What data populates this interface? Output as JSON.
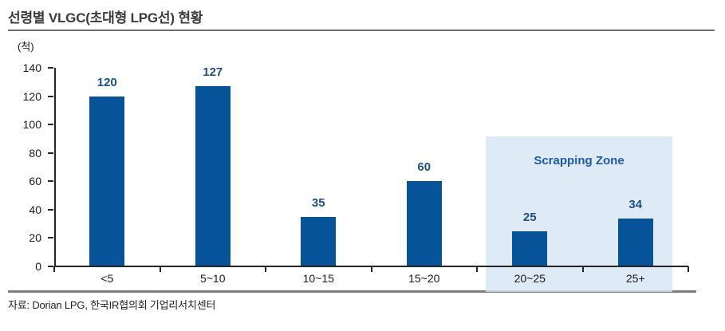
{
  "title": "선령별 VLGC(초대형 LPG선) 현황",
  "unit_label": "(척)",
  "source": "자료: Dorian LPG, 한국IR협의회 기업리서치센터",
  "colors": {
    "bar": "#07539a",
    "value_label": "#1d4f8b",
    "zone_bg": "rgba(213,228,243,0.78)",
    "zone_text": "#1e5ba6",
    "axis": "#262626",
    "title_text": "#3b3b3b",
    "title_rule": "#6f6f6f",
    "bottom_rule": "#7d7d7d"
  },
  "chart_data": {
    "type": "bar",
    "title": "선령별 VLGC(초대형 LPG선) 현황",
    "unit": "척",
    "categories": [
      "<5",
      "5~10",
      "10~15",
      "15~20",
      "20~25",
      "25+"
    ],
    "values": [
      120,
      127,
      35,
      60,
      25,
      34
    ],
    "xlabel": "",
    "ylabel": "(척)",
    "ylim": [
      0,
      140
    ],
    "ytick_step": 20,
    "grid": false,
    "legend": false,
    "annotation": {
      "label": "Scrapping Zone",
      "categories": [
        "20~25",
        "25+"
      ],
      "y_top": 90
    }
  }
}
